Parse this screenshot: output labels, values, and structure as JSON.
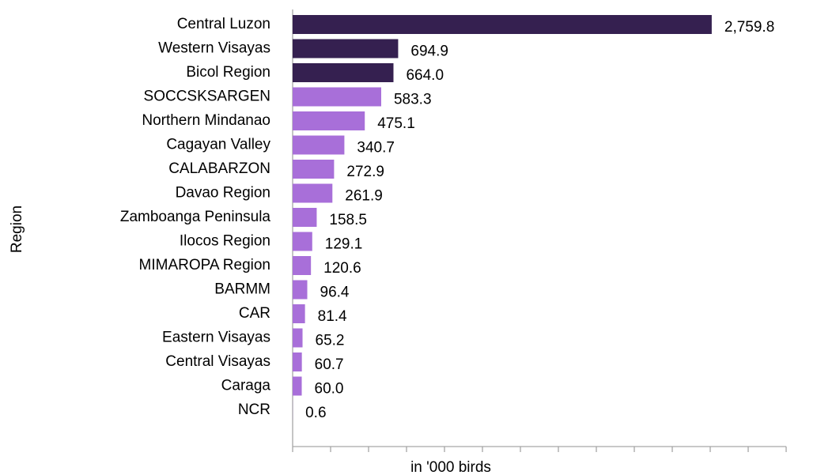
{
  "chart_data": {
    "type": "barh",
    "categories": [
      "Central Luzon",
      "Western Visayas",
      "Bicol Region",
      "SOCCSKSARGEN",
      "Northern Mindanao",
      "Cagayan Valley",
      "CALABARZON",
      "Davao Region",
      "Zamboanga Peninsula",
      "Ilocos Region",
      "MIMAROPA Region",
      "BARMM",
      "CAR",
      "Eastern Visayas",
      "Central Visayas",
      "Caraga",
      "NCR"
    ],
    "values": [
      2759.8,
      694.9,
      664.0,
      583.3,
      475.1,
      340.7,
      272.9,
      261.9,
      158.5,
      129.1,
      120.6,
      96.4,
      81.4,
      65.2,
      60.7,
      60.0,
      0.6
    ],
    "value_labels": [
      "2,759.8",
      "694.9",
      "664.0",
      "583.3",
      "475.1",
      "340.7",
      "272.9",
      "261.9",
      "158.5",
      "129.1",
      "120.6",
      "96.4",
      "81.4",
      "65.2",
      "60.7",
      "60.0",
      "0.6"
    ],
    "colors": [
      "#352050",
      "#352050",
      "#352050",
      "#a86fd9",
      "#a86fd9",
      "#a86fd9",
      "#a86fd9",
      "#a86fd9",
      "#a86fd9",
      "#a86fd9",
      "#a86fd9",
      "#a86fd9",
      "#a86fd9",
      "#a86fd9",
      "#a86fd9",
      "#a86fd9",
      "#a86fd9"
    ],
    "xlabel": "in '000 birds",
    "ylabel": "Region",
    "xlim": [
      0,
      3250
    ],
    "xticks": [
      0,
      250,
      500,
      750,
      1000,
      1250,
      1500,
      1750,
      2000,
      2250,
      2500,
      2750,
      3000,
      3250
    ]
  }
}
